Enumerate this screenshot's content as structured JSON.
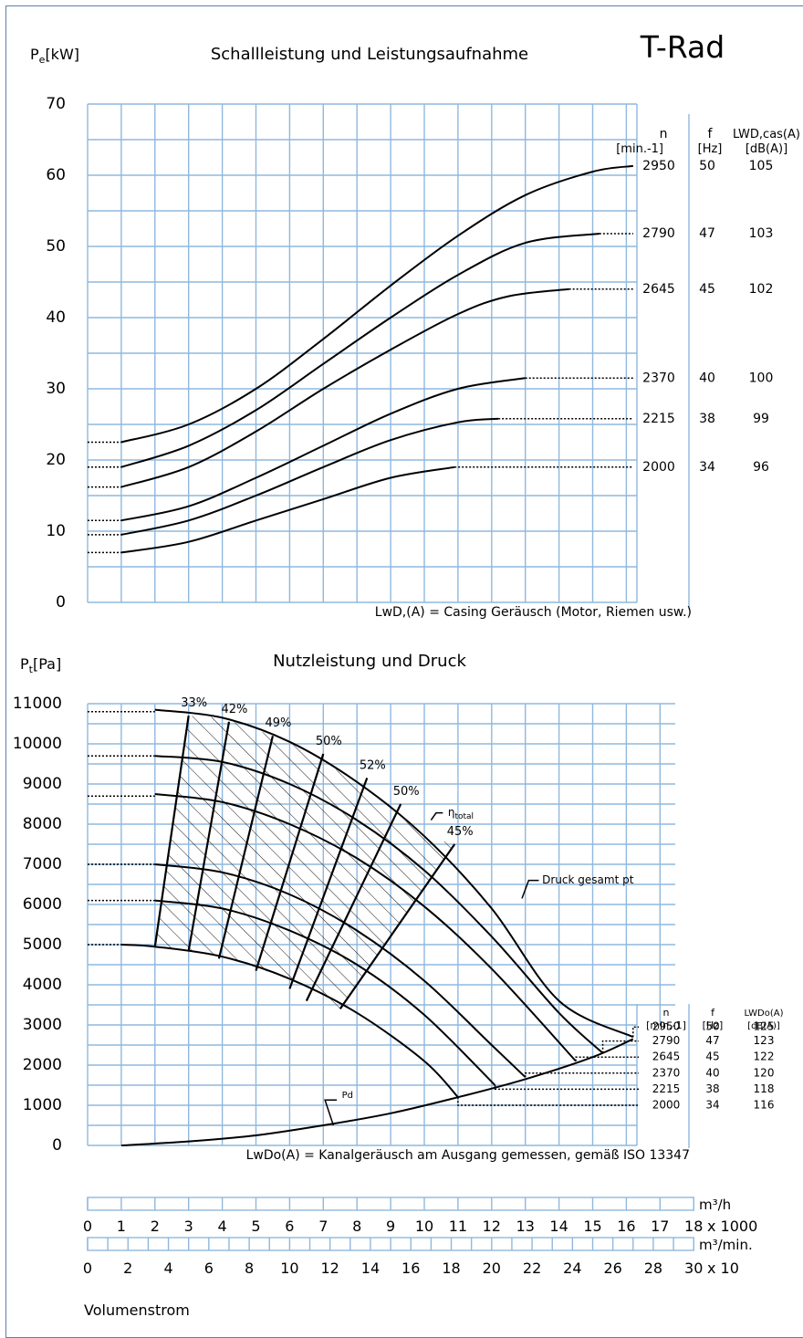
{
  "brand_title": "T-Rad",
  "grid_color": "#8fb8de",
  "frame_color": "#5b80a8",
  "chart_data": [
    {
      "type": "line",
      "title": "Schallleistung und Leistungsaufnahme",
      "ylabel": "Pe[kW]",
      "ylim": [
        0,
        70
      ],
      "yticks": [
        0,
        10,
        20,
        30,
        40,
        50,
        60,
        70
      ],
      "x_unit": "m³/h x 1000",
      "xlim": [
        0,
        18
      ],
      "grid": true,
      "table_header": {
        "n": "n",
        "n_unit": "[min.-1]",
        "f": "f",
        "f_unit": "[Hz]",
        "lw": "LWD,cas(A)",
        "lw_unit": "[dB(A)]"
      },
      "series": [
        {
          "n": "2950",
          "f": "50",
          "lw": "105",
          "start_y": 22.5,
          "x": [
            1,
            3,
            5,
            7,
            9,
            11,
            13,
            15,
            16.2
          ],
          "y": [
            22.5,
            25,
            30,
            37,
            44.5,
            51.5,
            57.2,
            60.5,
            61.3
          ],
          "extends_to_y": 61.3
        },
        {
          "n": "2790",
          "f": "47",
          "lw": "103",
          "start_y": 19,
          "x": [
            1,
            3,
            5,
            7,
            9,
            11,
            13,
            15.2
          ],
          "y": [
            19,
            22,
            27,
            33.5,
            40,
            46,
            50.5,
            51.8
          ],
          "extends_to_y": 51.8
        },
        {
          "n": "2645",
          "f": "45",
          "lw": "102",
          "start_y": 16.2,
          "x": [
            1,
            3,
            5,
            7,
            9,
            11,
            12.5,
            14.3
          ],
          "y": [
            16.2,
            19,
            24,
            30,
            35.5,
            40.5,
            43,
            44
          ],
          "extends_to_y": 44
        },
        {
          "n": "2370",
          "f": "40",
          "lw": "100",
          "start_y": 11.5,
          "x": [
            1,
            3,
            5,
            7,
            9,
            11,
            13
          ],
          "y": [
            11.5,
            13.5,
            17.5,
            22,
            26.5,
            30,
            31.5
          ],
          "extends_to_y": 31.5
        },
        {
          "n": "2215",
          "f": "38",
          "lw": "99",
          "start_y": 9.5,
          "x": [
            1,
            3,
            5,
            7,
            9,
            11,
            12.2
          ],
          "y": [
            9.5,
            11.5,
            15,
            19,
            22.8,
            25.3,
            25.8
          ],
          "extends_to_y": 25.8
        },
        {
          "n": "2000",
          "f": "34",
          "lw": "96",
          "start_y": 7,
          "x": [
            1,
            3,
            5,
            7,
            9,
            10.9
          ],
          "y": [
            7,
            8.5,
            11.5,
            14.5,
            17.5,
            19
          ],
          "extends_to_y": 19
        }
      ],
      "note": "LwD,(A) = Casing Geräusch (Motor, Riemen usw.)"
    },
    {
      "type": "line",
      "title": "Nutzleistung und Druck",
      "ylabel": "Pt[Pa]",
      "ylim": [
        0,
        11000
      ],
      "yticks": [
        0,
        1000,
        2000,
        3000,
        4000,
        5000,
        6000,
        7000,
        8000,
        9000,
        10000,
        11000
      ],
      "x_unit": "m³/h x 1000",
      "xlim": [
        0,
        18
      ],
      "grid": true,
      "table_header": {
        "n": "n",
        "n_unit": "[min.-1]",
        "f": "f",
        "f_unit": "[Hz]",
        "lw": "LWDo(A)",
        "lw_unit": "[dB(A)]"
      },
      "series": [
        {
          "n": "2950",
          "f": "50",
          "lw": "125",
          "start_y": 10800,
          "x": [
            2,
            4,
            6,
            8,
            10,
            12,
            14,
            16.2
          ],
          "y": [
            10850,
            10650,
            10050,
            9050,
            7700,
            5900,
            3600,
            2700
          ],
          "table_y": 2950
        },
        {
          "n": "2790",
          "f": "47",
          "lw": "123",
          "start_y": 9700,
          "x": [
            2,
            4,
            6,
            8,
            10,
            12,
            14,
            15.3
          ],
          "y": [
            9700,
            9550,
            9000,
            8100,
            6850,
            5200,
            3300,
            2300
          ],
          "table_y": 2600
        },
        {
          "n": "2645",
          "f": "45",
          "lw": "122",
          "start_y": 8700,
          "x": [
            2,
            4,
            6,
            8,
            10,
            12,
            14.5
          ],
          "y": [
            8750,
            8550,
            8000,
            7150,
            5950,
            4400,
            2100
          ],
          "table_y": 2200
        },
        {
          "n": "2370",
          "f": "40",
          "lw": "120",
          "start_y": 7000,
          "x": [
            2,
            4,
            6,
            8,
            10,
            12,
            13
          ],
          "y": [
            7000,
            6800,
            6250,
            5350,
            4100,
            2500,
            1700
          ],
          "table_y": 1800
        },
        {
          "n": "2215",
          "f": "38",
          "lw": "118",
          "start_y": 6100,
          "x": [
            2,
            4,
            6,
            8,
            10,
            12.1
          ],
          "y": [
            6100,
            5900,
            5350,
            4500,
            3250,
            1500
          ],
          "table_y": 1400
        },
        {
          "n": "2000",
          "f": "34",
          "lw": "116",
          "start_y": 5000,
          "x": [
            1,
            2,
            4,
            6,
            8,
            10,
            11
          ],
          "y": [
            5000,
            4950,
            4700,
            4150,
            3300,
            2100,
            1200
          ],
          "table_y": 1000
        }
      ],
      "pd_curve": {
        "label": "Pd",
        "x": [
          1,
          3,
          5,
          7,
          9,
          11,
          13,
          15,
          16.2
        ],
        "y": [
          0,
          100,
          250,
          500,
          800,
          1200,
          1650,
          2200,
          2650
        ]
      },
      "efficiency_lines": [
        {
          "label": "33%",
          "top": [
            3,
            10700
          ],
          "bottom": [
            2,
            4950
          ]
        },
        {
          "label": "42%",
          "top": [
            4.2,
            10550
          ],
          "bottom": [
            3,
            4850
          ]
        },
        {
          "label": "49%",
          "top": [
            5.5,
            10200
          ],
          "bottom": [
            3.9,
            4650
          ]
        },
        {
          "label": "50%",
          "top": [
            7,
            9750
          ],
          "bottom": [
            5,
            4350
          ]
        },
        {
          "label": "52%",
          "top": [
            8.3,
            9150
          ],
          "bottom": [
            6,
            3900
          ]
        },
        {
          "label": "50%",
          "top": [
            9.3,
            8500
          ],
          "bottom": [
            6.5,
            3600
          ]
        },
        {
          "label": "45%",
          "top": [
            10.9,
            7500
          ],
          "bottom": [
            7.5,
            3400
          ]
        }
      ],
      "eta_label": "ηtotal",
      "pt_label": "Druck gesamt pt",
      "note": "LwDo(A) = Kanalgeräusch am Ausgang gemessen, gemäß ISO 13347"
    }
  ],
  "axis_mh": {
    "unit": "m³/h",
    "multiplier": "x 1000",
    "ticks": [
      "0",
      "1",
      "2",
      "3",
      "4",
      "5",
      "6",
      "7",
      "8",
      "9",
      "10",
      "11",
      "12",
      "13",
      "14",
      "15",
      "16",
      "17",
      "18"
    ]
  },
  "axis_mmin": {
    "unit": "m³/min.",
    "multiplier": "x 10",
    "ticks": [
      "0",
      "2",
      "4",
      "6",
      "8",
      "10",
      "12",
      "14",
      "16",
      "18",
      "20",
      "22",
      "24",
      "26",
      "28",
      "30"
    ]
  },
  "xlabel": "Volumenstrom"
}
